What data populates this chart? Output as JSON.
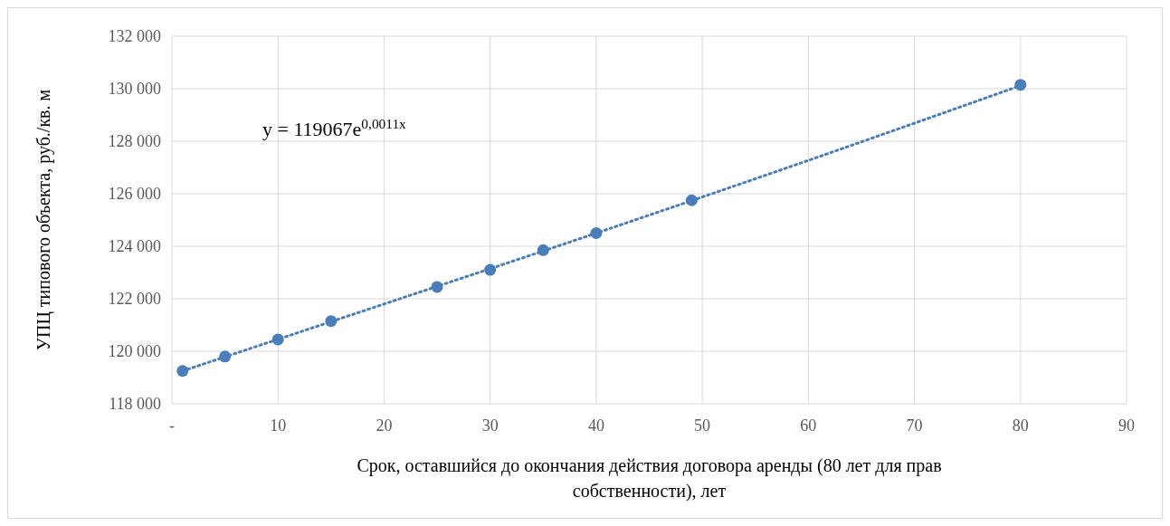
{
  "chart_data": {
    "type": "scatter",
    "xlabel": "Срок, оставшийся до окончания  действия договора аренды (80 лет для прав собственности), лет",
    "ylabel": "УПЦ типового объекта, руб./кв. м",
    "annotations": [
      "y = 119067e$^{0,0011x}$"
    ],
    "xlim": [
      0,
      90
    ],
    "xticks": [
      {
        "value": 0,
        "label": "-"
      },
      10,
      20,
      30,
      40,
      50,
      60,
      70,
      80,
      90
    ],
    "ylim": [
      118000,
      132000
    ],
    "yticks": [
      {
        "value": 118000,
        "label": "118 000"
      },
      {
        "value": 120000,
        "label": "120 000"
      },
      {
        "value": 122000,
        "label": "122 000"
      },
      {
        "value": 124000,
        "label": "124 000"
      },
      {
        "value": 126000,
        "label": "126 000"
      },
      {
        "value": 128000,
        "label": "128 000"
      },
      {
        "value": 130000,
        "label": "130 000"
      },
      {
        "value": 132000,
        "label": "132 000"
      }
    ],
    "grid": true,
    "series": [
      {
        "type": "line",
        "color": "#4a7ebb",
        "line_style": "dotted",
        "marker": "none",
        "x": [
          1,
          20,
          40,
          60,
          80
        ],
        "values": [
          119250,
          121800,
          124500,
          127270,
          130120
        ]
      },
      {
        "color": "#4a7ebb",
        "marker": "circle",
        "x": [
          1,
          5,
          10,
          15,
          25,
          30,
          35,
          40,
          49,
          80
        ],
        "values": [
          119250,
          119800,
          120450,
          121150,
          122450,
          123100,
          123850,
          124500,
          125750,
          130150
        ]
      }
    ]
  }
}
